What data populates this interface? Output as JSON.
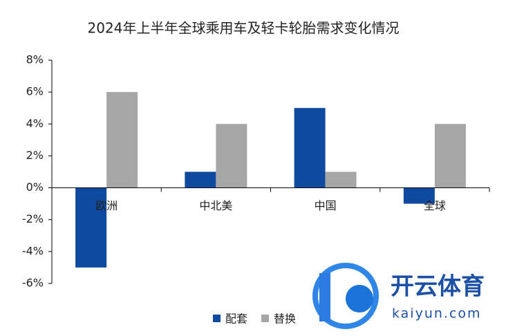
{
  "chart_data": {
    "type": "bar",
    "title": "2024年上半年全球乘用车及轻卡轮胎需求变化情况",
    "categories": [
      "欧洲",
      "中北美",
      "中国",
      "全球"
    ],
    "series": [
      {
        "name": "配套",
        "color": "#0e4aa0",
        "values": [
          -5,
          1,
          5,
          -1
        ]
      },
      {
        "name": "替换",
        "color": "#a6a6a6",
        "values": [
          6,
          4,
          1,
          4
        ]
      }
    ],
    "ylim": [
      -6,
      8
    ],
    "yticks": [
      {
        "value": -6,
        "label": "-6%"
      },
      {
        "value": -4,
        "label": "-4%"
      },
      {
        "value": -2,
        "label": "-2%"
      },
      {
        "value": 0,
        "label": "0%"
      },
      {
        "value": 2,
        "label": "2%"
      },
      {
        "value": 4,
        "label": "4%"
      },
      {
        "value": 6,
        "label": "6%"
      },
      {
        "value": 8,
        "label": "8%"
      }
    ],
    "grid": false,
    "legend": "bottom"
  },
  "watermark": {
    "brand": "开云体育",
    "site": "kaiyun.com"
  }
}
